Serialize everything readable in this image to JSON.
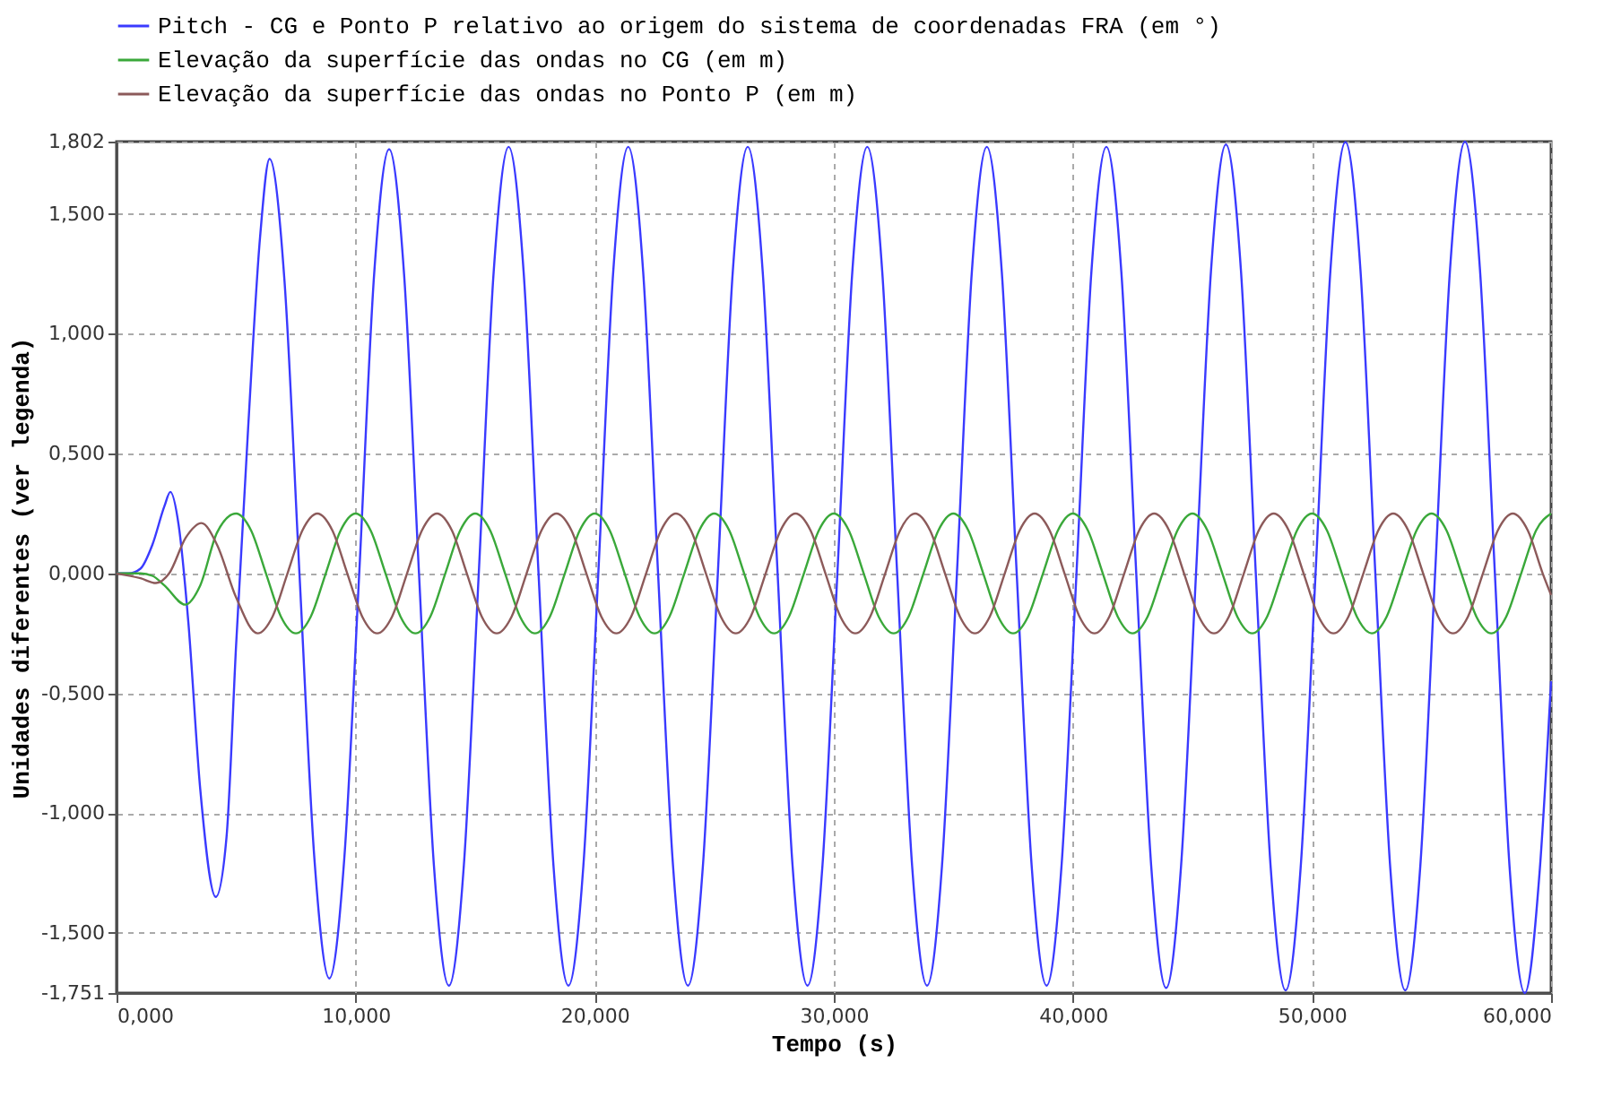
{
  "chart_data": {
    "type": "line",
    "xlabel": "Tempo (s)",
    "ylabel": "Unidades diferentes (ver legenda)",
    "xlim": [
      0,
      60
    ],
    "xticks": [
      {
        "value": 0,
        "label": "0,000"
      },
      {
        "value": 10,
        "label": "10,000"
      },
      {
        "value": 20,
        "label": "20,000"
      },
      {
        "value": 30,
        "label": "30,000"
      },
      {
        "value": 40,
        "label": "40,000"
      },
      {
        "value": 50,
        "label": "50,000"
      },
      {
        "value": 60,
        "label": "60,000"
      }
    ],
    "ylim": [
      -1.751,
      1.802
    ],
    "yticks": [
      {
        "value": -1.751,
        "label": "-1,751"
      },
      {
        "value": -1.5,
        "label": "-1,500"
      },
      {
        "value": -1,
        "label": "-1,000"
      },
      {
        "value": -0.5,
        "label": "-0,500"
      },
      {
        "value": 0,
        "label": "0,000"
      },
      {
        "value": 0.5,
        "label": "0,500"
      },
      {
        "value": 1,
        "label": "1,000"
      },
      {
        "value": 1.5,
        "label": "1,500"
      },
      {
        "value": 1.802,
        "label": "1,802"
      }
    ],
    "grid": true,
    "legend": "top",
    "marker": "none",
    "line_style": "solid",
    "series": [
      {
        "name": "Pitch - CG e Ponto P relativo ao origem do sistema de coordenadas FRA (em °)",
        "color": "#3a3aff",
        "x": [
          0,
          0.5,
          1.0,
          1.5,
          2.0,
          2.25,
          2.6,
          3.0,
          3.5,
          4.15,
          4.6,
          5.0,
          5.5,
          6.0,
          6.4,
          7.025,
          7.65,
          8.275,
          8.9,
          9.525,
          10.15,
          10.775,
          11.4,
          12.025,
          12.65,
          13.275,
          13.9,
          14.525,
          15.15,
          15.775,
          16.4,
          17.025,
          17.65,
          18.275,
          18.9,
          19.525,
          20.15,
          20.775,
          21.4,
          22.025,
          22.65,
          23.275,
          23.9,
          24.525,
          25.15,
          25.775,
          26.4,
          27.025,
          27.65,
          28.275,
          28.9,
          29.525,
          30.15,
          30.775,
          31.4,
          32.025,
          32.65,
          33.275,
          33.9,
          34.525,
          35.15,
          35.775,
          36.4,
          37.025,
          37.65,
          38.275,
          38.9,
          39.525,
          40.15,
          40.775,
          41.4,
          42.025,
          42.65,
          43.275,
          43.9,
          44.525,
          45.15,
          45.775,
          46.4,
          47.025,
          47.65,
          48.275,
          48.9,
          49.525,
          50.15,
          50.775,
          51.4,
          52.025,
          52.65,
          53.275,
          53.9,
          54.525,
          55.15,
          55.775,
          56.4,
          57.025,
          57.65,
          58.275,
          58.9,
          59.525,
          60
        ],
        "values": [
          0,
          0,
          0.02,
          0.12,
          0.28,
          0.34,
          0.2,
          -0.2,
          -0.9,
          -1.35,
          -1.1,
          -0.3,
          0.6,
          1.4,
          1.73,
          1.22,
          0,
          -1.19,
          -1.69,
          -1.19,
          0,
          1.25,
          1.77,
          1.25,
          0,
          -1.22,
          -1.72,
          -1.22,
          0,
          1.26,
          1.78,
          1.26,
          0,
          -1.22,
          -1.72,
          -1.22,
          0,
          1.26,
          1.78,
          1.26,
          0,
          -1.22,
          -1.72,
          -1.22,
          0,
          1.26,
          1.78,
          1.26,
          0,
          -1.22,
          -1.72,
          -1.22,
          0,
          1.26,
          1.78,
          1.26,
          0,
          -1.22,
          -1.72,
          -1.22,
          0,
          1.26,
          1.78,
          1.26,
          0,
          -1.22,
          -1.72,
          -1.22,
          0,
          1.26,
          1.78,
          1.26,
          0,
          -1.22,
          -1.73,
          -1.22,
          0,
          1.26,
          1.79,
          1.27,
          0,
          -1.23,
          -1.74,
          -1.23,
          0,
          1.27,
          1.8,
          1.27,
          0,
          -1.23,
          -1.74,
          -1.23,
          0,
          1.27,
          1.802,
          1.27,
          0,
          -1.24,
          -1.751,
          -1.24,
          -0.45
        ]
      },
      {
        "name": "Elevação da superfície das ondas no CG (em m)",
        "color": "#3aa83a",
        "x": [
          0,
          1.0,
          1.5,
          2.0,
          2.87,
          3.5,
          4.2,
          5.0,
          5.625,
          6.25,
          6.875,
          7.5,
          8.125,
          8.75,
          9.375,
          10.0,
          10.625,
          11.25,
          11.875,
          12.5,
          13.125,
          13.75,
          14.375,
          15.0,
          15.625,
          16.25,
          16.875,
          17.5,
          18.125,
          18.75,
          19.375,
          20.0,
          20.625,
          21.25,
          21.875,
          22.5,
          23.125,
          23.75,
          24.375,
          25.0,
          25.625,
          26.25,
          26.875,
          27.5,
          28.125,
          28.75,
          29.375,
          30.0,
          30.625,
          31.25,
          31.875,
          32.5,
          33.125,
          33.75,
          34.375,
          35.0,
          35.625,
          36.25,
          36.875,
          37.5,
          38.125,
          38.75,
          39.375,
          40.0,
          40.625,
          41.25,
          41.875,
          42.5,
          43.125,
          43.75,
          44.375,
          45.0,
          45.625,
          46.25,
          46.875,
          47.5,
          48.125,
          48.75,
          49.375,
          50.0,
          50.625,
          51.25,
          51.875,
          52.5,
          53.125,
          53.75,
          54.375,
          55.0,
          55.625,
          56.25,
          56.875,
          57.5,
          58.125,
          58.75,
          59.375,
          60.0
        ],
        "values": [
          0,
          0,
          -0.01,
          -0.05,
          -0.13,
          -0.05,
          0.17,
          0.25,
          0.18,
          0,
          -0.18,
          -0.25,
          -0.18,
          0,
          0.18,
          0.25,
          0.18,
          0,
          -0.18,
          -0.25,
          -0.18,
          0,
          0.18,
          0.25,
          0.18,
          0,
          -0.18,
          -0.25,
          -0.18,
          0,
          0.18,
          0.25,
          0.18,
          0,
          -0.18,
          -0.25,
          -0.18,
          0,
          0.18,
          0.25,
          0.18,
          0,
          -0.18,
          -0.25,
          -0.18,
          0,
          0.18,
          0.25,
          0.18,
          0,
          -0.18,
          -0.25,
          -0.18,
          0,
          0.18,
          0.25,
          0.18,
          0,
          -0.18,
          -0.25,
          -0.18,
          0,
          0.18,
          0.25,
          0.18,
          0,
          -0.18,
          -0.25,
          -0.18,
          0,
          0.18,
          0.25,
          0.18,
          0,
          -0.18,
          -0.25,
          -0.18,
          0,
          0.18,
          0.25,
          0.18,
          0,
          -0.18,
          -0.25,
          -0.18,
          0,
          0.18,
          0.25,
          0.18,
          0,
          -0.18,
          -0.25,
          -0.18,
          0,
          0.18,
          0.25
        ]
      },
      {
        "name": "Elevação da superfície das ondas no Ponto P (em m)",
        "color": "#8c5a5a",
        "x": [
          0,
          1.0,
          1.65,
          2.2,
          2.9,
          3.55,
          4.2,
          5.0,
          5.9,
          6.525,
          7.15,
          7.775,
          8.4,
          9.025,
          9.65,
          10.275,
          10.9,
          11.525,
          12.15,
          12.775,
          13.4,
          14.025,
          14.65,
          15.275,
          15.9,
          16.525,
          17.15,
          17.775,
          18.4,
          19.025,
          19.65,
          20.275,
          20.9,
          21.525,
          22.15,
          22.775,
          23.4,
          24.025,
          24.65,
          25.275,
          25.9,
          26.525,
          27.15,
          27.775,
          28.4,
          29.025,
          29.65,
          30.275,
          30.9,
          31.525,
          32.15,
          32.775,
          33.4,
          34.025,
          34.65,
          35.275,
          35.9,
          36.525,
          37.15,
          37.775,
          38.4,
          39.025,
          39.65,
          40.275,
          40.9,
          41.525,
          42.15,
          42.775,
          43.4,
          44.025,
          44.65,
          45.275,
          45.9,
          46.525,
          47.15,
          47.775,
          48.4,
          49.025,
          49.65,
          50.275,
          50.9,
          51.525,
          52.15,
          52.775,
          53.4,
          54.025,
          54.65,
          55.275,
          55.9,
          56.525,
          57.15,
          57.775,
          58.4,
          59.025,
          59.65,
          60
        ],
        "values": [
          0,
          -0.02,
          -0.04,
          0,
          0.15,
          0.21,
          0.12,
          -0.1,
          -0.25,
          -0.18,
          0,
          0.18,
          0.25,
          0.18,
          0,
          -0.18,
          -0.25,
          -0.18,
          0,
          0.18,
          0.25,
          0.18,
          0,
          -0.18,
          -0.25,
          -0.18,
          0,
          0.18,
          0.25,
          0.18,
          0,
          -0.18,
          -0.25,
          -0.18,
          0,
          0.18,
          0.25,
          0.18,
          0,
          -0.18,
          -0.25,
          -0.18,
          0,
          0.18,
          0.25,
          0.18,
          0,
          -0.18,
          -0.25,
          -0.18,
          0,
          0.18,
          0.25,
          0.18,
          0,
          -0.18,
          -0.25,
          -0.18,
          0,
          0.18,
          0.25,
          0.18,
          0,
          -0.18,
          -0.25,
          -0.18,
          0,
          0.18,
          0.25,
          0.18,
          0,
          -0.18,
          -0.25,
          -0.18,
          0,
          0.18,
          0.25,
          0.18,
          0,
          -0.18,
          -0.25,
          -0.18,
          0,
          0.18,
          0.25,
          0.18,
          0,
          -0.18,
          -0.25,
          -0.18,
          0,
          0.18,
          0.25,
          0.18,
          0,
          -0.09
        ]
      }
    ]
  }
}
